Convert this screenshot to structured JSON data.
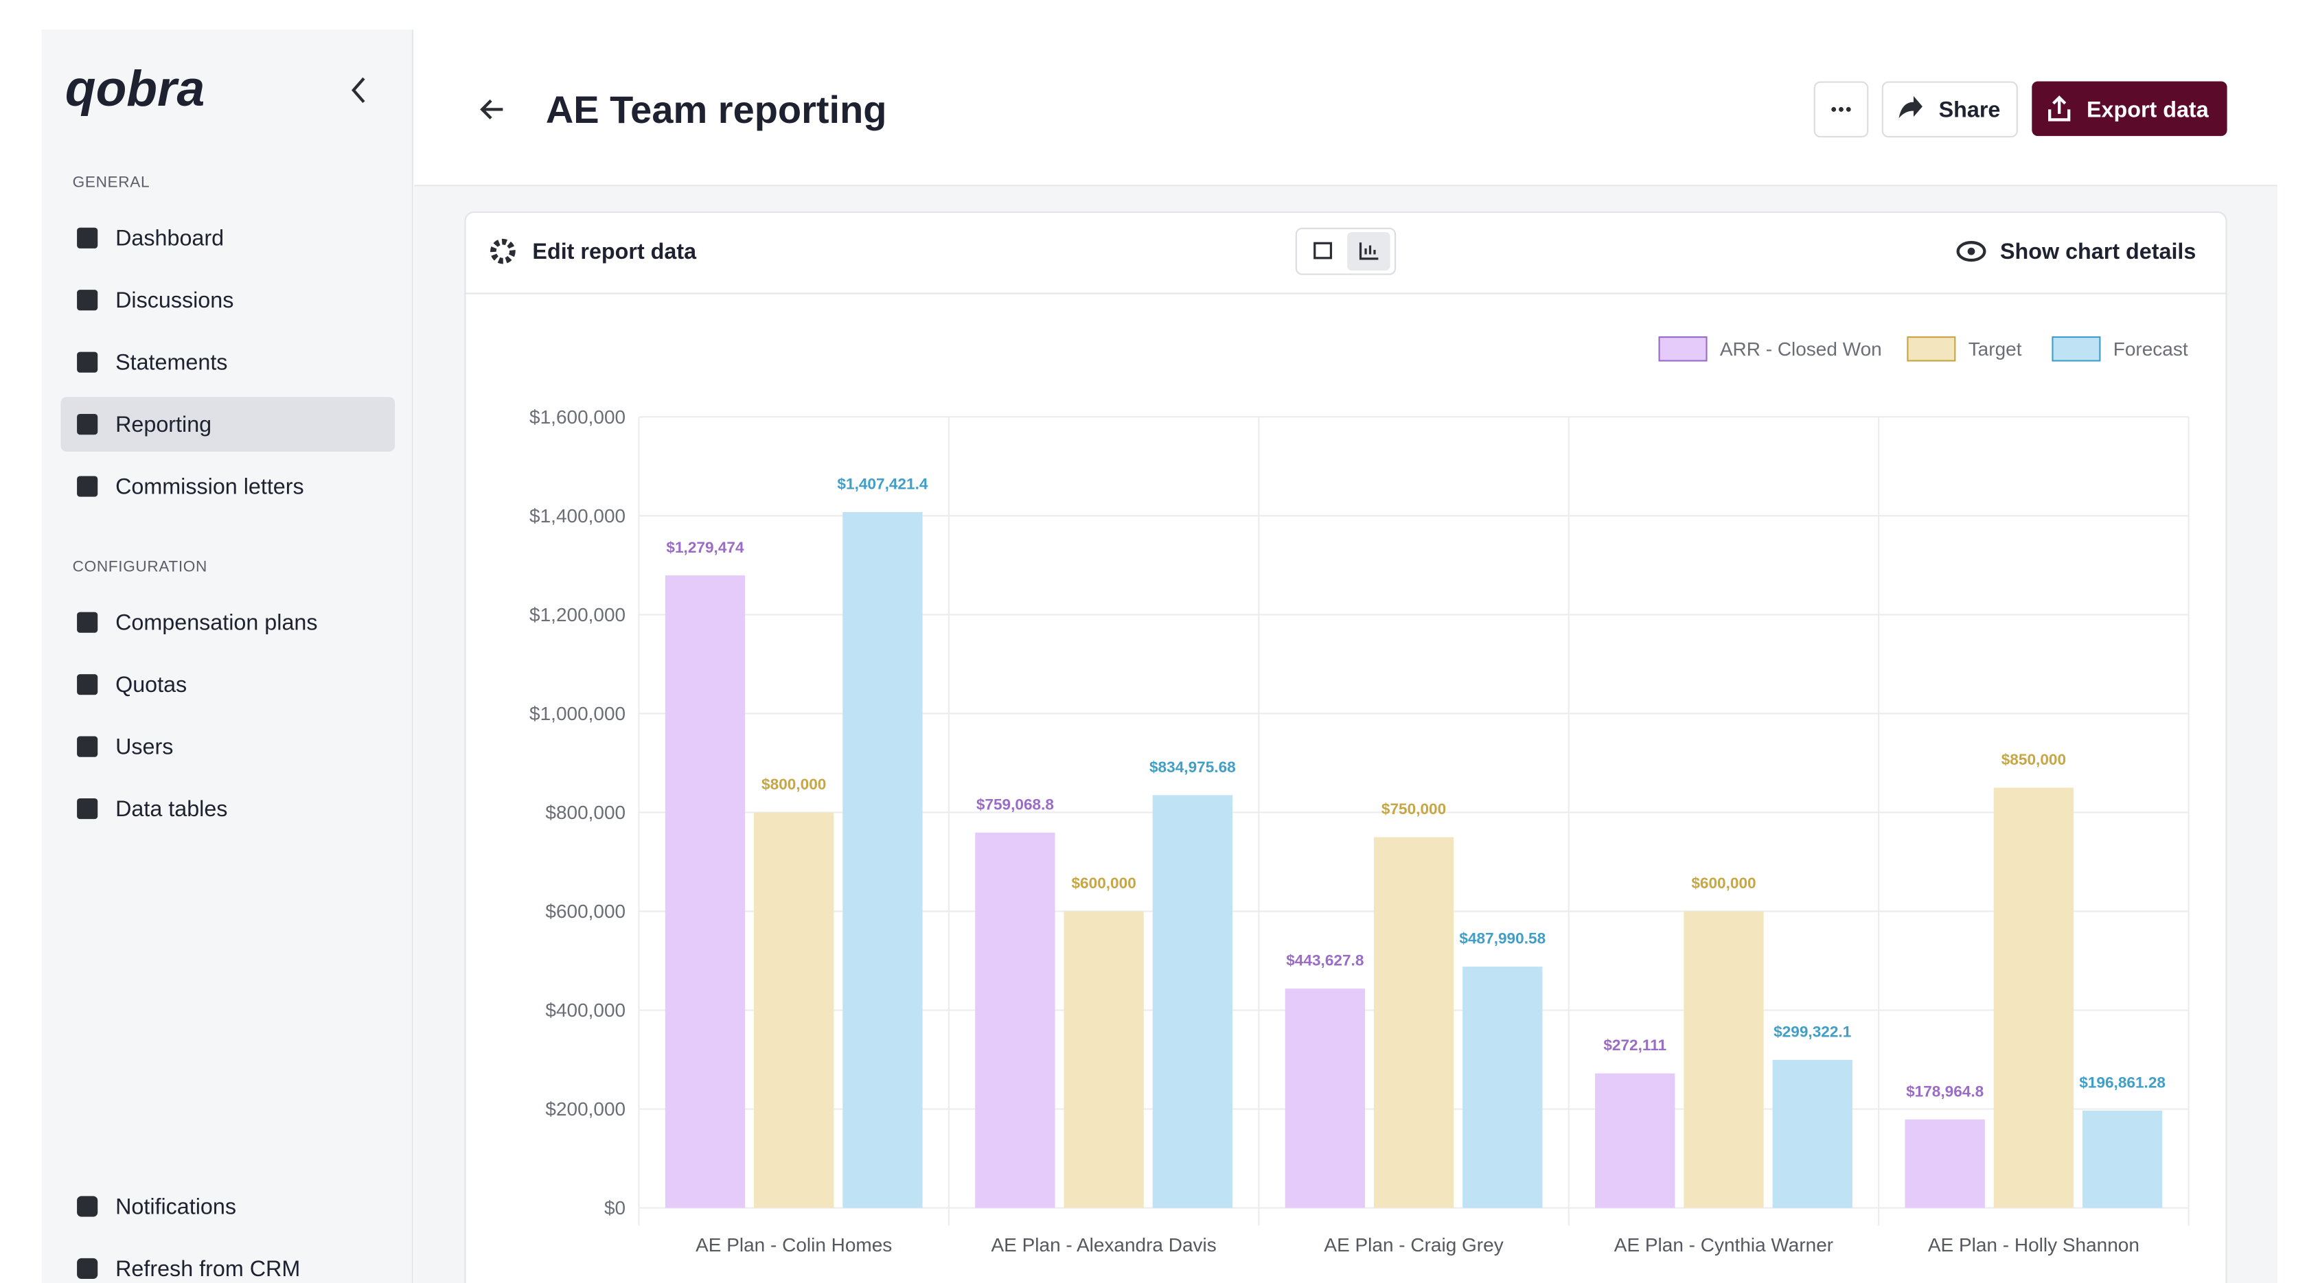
{
  "sidebar": {
    "logo": "qobra",
    "sections": [
      {
        "title": "GENERAL",
        "items": [
          "Dashboard",
          "Discussions",
          "Statements",
          "Reporting",
          "Commission letters"
        ]
      },
      {
        "title": "CONFIGURATION",
        "items": [
          "Compensation plans",
          "Quotas",
          "Users",
          "Data tables"
        ]
      }
    ],
    "footer": [
      "Notifications",
      "Refresh from CRM"
    ]
  },
  "header": {
    "title": "AE Team reporting",
    "buttons": [
      "Share",
      "Export data"
    ]
  },
  "toolbar": {
    "edit": "Edit report data",
    "details": "Show chart details"
  },
  "chart_data": {
    "type": "bar",
    "categories": [
      "AE Plan - Colin Homes",
      "AE Plan - Alexandra Davis",
      "AE Plan - Craig Grey",
      "AE Plan - Cynthia Warner",
      "AE Plan - Holly Shannon"
    ],
    "series": [
      {
        "name": "ARR - Closed Won",
        "color": "#e4cbf9",
        "label_color": "#9a6cc6",
        "values": [
          1279474,
          759068.8,
          443627.8,
          272111,
          178964.8
        ],
        "value_labels": [
          "$1,279,474",
          "$759,068.8",
          "$443,627.8",
          "$272,111",
          "$178,964.8"
        ]
      },
      {
        "name": "Target",
        "color": "#f3e5bd",
        "label_color": "#c6a645",
        "values": [
          800000,
          600000,
          750000,
          600000,
          850000
        ],
        "value_labels": [
          "$800,000",
          "$600,000",
          "$750,000",
          "$600,000",
          "$850,000"
        ]
      },
      {
        "name": "Forecast",
        "color": "#bfe3f5",
        "label_color": "#3f9fc9",
        "values": [
          1407421.4,
          834975.68,
          487990.58,
          299322.1,
          196861.28
        ],
        "value_labels": [
          "$1,407,421.4",
          "$834,975.68",
          "$487,990.58",
          "$299,322.1",
          "$196,861.28"
        ]
      }
    ],
    "ylim": [
      0,
      1600000
    ],
    "yticks": [
      {
        "value": 0,
        "label": "$0"
      },
      {
        "value": 200000,
        "label": "$200,000"
      },
      {
        "value": 400000,
        "label": "$400,000"
      },
      {
        "value": 600000,
        "label": "$600,000"
      },
      {
        "value": 800000,
        "label": "$800,000"
      },
      {
        "value": 1000000,
        "label": "$1,000,000"
      },
      {
        "value": 1200000,
        "label": "$1,200,000"
      },
      {
        "value": 1400000,
        "label": "$1,400,000"
      },
      {
        "value": 1600000,
        "label": "$1,600,000"
      }
    ],
    "grid": true,
    "legend": "top-right"
  }
}
